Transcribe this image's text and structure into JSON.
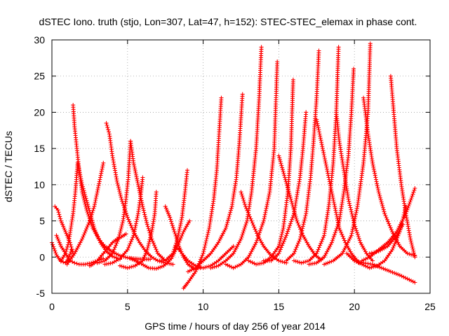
{
  "chart_data": {
    "type": "scatter",
    "title": "dSTEC Iono. truth (stjo, Lon=307, Lat=47, h=152): STEC-STEC_elemax in phase cont.",
    "xlabel": "GPS time / hours of day 256 of year 2014",
    "ylabel": "dSTEC  / TECUs",
    "xlim": [
      0,
      25
    ],
    "ylim": [
      -5,
      30
    ],
    "xticks": [
      "0",
      "5",
      "10",
      "15",
      "20",
      "25"
    ],
    "yticks": [
      "-5",
      "0",
      "5",
      "10",
      "15",
      "20",
      "25",
      "30"
    ],
    "grid": true,
    "legend": "none",
    "marker": "plus",
    "color": "#ff0000",
    "series": [
      {
        "x": [
          0.0,
          0.3,
          0.6,
          0.9,
          1.1,
          1.3
        ],
        "y": [
          2,
          0.3,
          -0.6,
          -0.8,
          -0.2,
          1.0
        ]
      },
      {
        "x": [
          0.2,
          0.4,
          0.6,
          0.8,
          1.0,
          1.2,
          1.4
        ],
        "y": [
          7,
          6.5,
          5,
          4,
          3,
          2,
          0.5
        ]
      },
      {
        "x": [
          0.3,
          0.6,
          0.9,
          1.2,
          1.5,
          1.8,
          2.2,
          2.6,
          3.0,
          3.4
        ],
        "y": [
          3,
          1.5,
          0.5,
          -0.5,
          -0.8,
          -1.0,
          -1.0,
          -0.8,
          -0.5,
          -0.2
        ]
      },
      {
        "x": [
          0.6,
          0.9,
          1.1,
          1.25,
          1.4,
          1.55,
          1.7,
          2.0,
          2.4,
          2.8,
          3.2,
          3.6,
          4.0,
          4.5
        ],
        "y": [
          -0.5,
          0.5,
          2,
          4,
          6,
          9,
          13,
          10,
          7,
          4,
          2,
          0.8,
          0.1,
          -0.3
        ]
      },
      {
        "x": [
          1.4,
          1.5,
          1.65,
          1.8,
          2.0,
          2.3,
          2.7,
          3.1,
          3.5,
          4.0,
          4.5,
          5.0,
          5.5,
          6.0,
          6.5
        ],
        "y": [
          21,
          18,
          15,
          12,
          9,
          6.5,
          4,
          2.5,
          1.5,
          0.7,
          0.2,
          -0.1,
          -0.2,
          -0.3,
          -0.3
        ]
      },
      {
        "x": [
          1.0,
          1.5,
          2.0,
          2.5,
          2.8,
          3.0,
          3.2,
          3.4
        ],
        "y": [
          -1.0,
          0.5,
          2.5,
          5,
          7,
          9,
          11,
          13
        ]
      },
      {
        "x": [
          2.5,
          2.7,
          3.0,
          3.4,
          3.8,
          4.0,
          4.3,
          4.6,
          4.9
        ],
        "y": [
          -1.2,
          -1.0,
          -0.5,
          0.5,
          1.5,
          2.0,
          2.5,
          2.8,
          3.2
        ]
      },
      {
        "x": [
          3.6,
          3.8,
          4.0,
          4.3,
          4.6,
          5.0,
          5.4,
          5.8,
          6.2,
          6.6,
          7.0,
          7.5,
          8.0
        ],
        "y": [
          18.5,
          17,
          14,
          10.5,
          8,
          5.5,
          3.5,
          2,
          0.8,
          0,
          -0.5,
          -0.8,
          -1.0
        ]
      },
      {
        "x": [
          3.0,
          3.5,
          4.0,
          4.4,
          4.7,
          4.9,
          5.05,
          5.2
        ],
        "y": [
          -0.8,
          -0.5,
          0.5,
          2.5,
          5,
          8,
          11,
          16
        ]
      },
      {
        "x": [
          5.2,
          5.4,
          5.7,
          6.0,
          6.3,
          6.6,
          7.0,
          7.5
        ],
        "y": [
          16,
          13,
          10,
          7,
          4.5,
          2.5,
          0.5,
          -0.5
        ]
      },
      {
        "x": [
          3.5,
          4.0,
          4.5,
          5.0,
          5.4,
          5.7,
          5.9,
          6.0
        ],
        "y": [
          -1.0,
          -0.8,
          -0.2,
          1,
          3,
          6,
          9,
          11
        ]
      },
      {
        "x": [
          4.5,
          5.0,
          5.5,
          6.0,
          6.3,
          6.6,
          6.8,
          6.9
        ],
        "y": [
          -1.2,
          -1.5,
          -1.2,
          -0.5,
          1,
          3.5,
          6,
          9
        ]
      },
      {
        "x": [
          5.2,
          5.8,
          6.4,
          6.9,
          7.4,
          7.9,
          8.3,
          8.7,
          9.1
        ],
        "y": [
          -0.2,
          -0.8,
          -1.5,
          -1.6,
          -1.2,
          -0.2,
          1.5,
          3.5,
          5
        ]
      },
      {
        "x": [
          7.5,
          7.8,
          8.1,
          8.4,
          8.7,
          9.0,
          9.4,
          9.8
        ],
        "y": [
          7,
          5.5,
          3.5,
          1.5,
          0,
          -1.0,
          -1.6,
          -1.5
        ]
      },
      {
        "x": [
          7.0,
          7.5,
          8.0,
          8.3,
          8.6,
          8.8,
          8.95
        ],
        "y": [
          -0.5,
          -0.5,
          0.5,
          2.5,
          5.5,
          9,
          12
        ]
      },
      {
        "x": [
          8.7,
          9.0,
          9.5,
          10.0,
          10.4,
          10.7,
          10.9,
          11.05,
          11.2
        ],
        "y": [
          -4.3,
          -3.5,
          -2,
          0.5,
          4,
          8,
          12,
          17,
          22
        ]
      },
      {
        "x": [
          8.2,
          8.6,
          9.0,
          9.5,
          10.0,
          10.5,
          11.0,
          11.5,
          12.0
        ],
        "y": [
          1.5,
          0.5,
          -0.5,
          -1.2,
          -1.5,
          -1.2,
          -0.5,
          0.5,
          1.5
        ]
      },
      {
        "x": [
          9.0,
          9.5,
          10.0,
          10.5,
          11.0,
          11.5,
          11.9,
          12.2,
          12.4,
          12.6
        ],
        "y": [
          -2.0,
          -1.5,
          -0.5,
          0.5,
          2,
          4,
          7,
          11,
          16,
          22.5
        ]
      },
      {
        "x": [
          10.5,
          11.0,
          11.5,
          12.0,
          12.5,
          12.9,
          13.2,
          13.5,
          13.7,
          13.85
        ],
        "y": [
          -1.5,
          -1.2,
          -0.5,
          0.5,
          2.5,
          5,
          9,
          15,
          22,
          29
        ]
      },
      {
        "x": [
          11.5,
          12.0,
          12.5,
          13.0,
          13.5,
          14.0,
          14.4,
          14.7,
          14.9
        ],
        "y": [
          -1.0,
          -1.5,
          -1.0,
          0,
          2,
          5,
          9,
          15,
          27
        ]
      },
      {
        "x": [
          12.5,
          12.8,
          13.2,
          13.6,
          14.0,
          14.5,
          15.0,
          15.5
        ],
        "y": [
          9,
          7,
          5,
          3,
          1.5,
          0.2,
          -0.5,
          -0.8
        ]
      },
      {
        "x": [
          13.0,
          13.5,
          14.0,
          14.5,
          15.0,
          15.3,
          15.6,
          15.8,
          15.95
        ],
        "y": [
          -0.5,
          -1.0,
          -0.8,
          0,
          1.5,
          4,
          9,
          15,
          24.5
        ]
      },
      {
        "x": [
          14.0,
          14.5,
          15.0,
          15.5,
          16.0,
          16.4,
          16.6,
          16.8
        ],
        "y": [
          -0.5,
          -0.5,
          0.5,
          3,
          6,
          11,
          15,
          20
        ]
      },
      {
        "x": [
          15.0,
          15.4,
          15.8,
          16.2,
          16.6,
          17.0,
          17.4,
          17.8
        ],
        "y": [
          14,
          11,
          8,
          5,
          3,
          1.5,
          0.3,
          -0.4
        ]
      },
      {
        "x": [
          15.5,
          16.0,
          16.4,
          16.8,
          17.1,
          17.3,
          17.5,
          17.65
        ],
        "y": [
          -0.5,
          0.5,
          2.5,
          6,
          11,
          16,
          22,
          28.5
        ]
      },
      {
        "x": [
          16.0,
          16.5,
          17.0,
          17.5,
          18.0,
          18.3,
          18.6,
          18.8,
          18.95
        ],
        "y": [
          -0.5,
          -0.8,
          -0.5,
          0.5,
          3,
          7,
          13,
          20,
          29
        ]
      },
      {
        "x": [
          17.5,
          17.9,
          18.3,
          18.7,
          19.0,
          19.4,
          19.8,
          20.3
        ],
        "y": [
          19,
          15,
          11,
          7,
          4,
          2,
          0.5,
          -0.8
        ]
      },
      {
        "x": [
          17.0,
          17.5,
          18.0,
          18.5,
          19.0,
          19.3,
          19.6,
          19.8,
          19.95
        ],
        "y": [
          -1.0,
          -0.8,
          0,
          2,
          5,
          9,
          14,
          20,
          26
        ]
      },
      {
        "x": [
          18.8,
          19.0,
          19.3,
          19.6,
          20.0,
          20.4,
          20.8,
          21.2
        ],
        "y": [
          20,
          16,
          12,
          8,
          4.5,
          2,
          0.5,
          -0.5
        ]
      },
      {
        "x": [
          18.0,
          18.6,
          19.2,
          19.8,
          20.2,
          20.6,
          20.9,
          21.05
        ],
        "y": [
          -1.0,
          -0.5,
          0.5,
          3,
          7,
          13,
          20,
          29.5
        ]
      },
      {
        "x": [
          20.6,
          20.9,
          21.2,
          21.6,
          22.0,
          22.5,
          23.0,
          23.5,
          24.0
        ],
        "y": [
          22,
          17,
          13,
          9,
          6,
          3.5,
          1.5,
          0.5,
          0.2
        ]
      },
      {
        "x": [
          19.5,
          20.0,
          20.5,
          21.0,
          21.5,
          22.0,
          22.5,
          23.0,
          23.4
        ],
        "y": [
          0.5,
          -0.5,
          -1.0,
          -1.5,
          -1.2,
          -0.5,
          1,
          3.5,
          7
        ]
      },
      {
        "x": [
          20.5,
          21.0,
          21.6,
          22.2,
          22.8,
          23.4,
          24.0
        ],
        "y": [
          -0.5,
          0,
          1,
          2,
          3.5,
          6,
          9.5
        ]
      },
      {
        "x": [
          22.4,
          22.6,
          22.8,
          23.1,
          23.4,
          23.7,
          24.0
        ],
        "y": [
          25,
          20,
          15,
          10,
          6,
          2.5,
          0
        ]
      },
      {
        "x": [
          20.0,
          20.6,
          21.2,
          21.8,
          22.4,
          23.0,
          23.5,
          24.0
        ],
        "y": [
          -0.5,
          -0.8,
          -1.0,
          -1.5,
          -2.0,
          -2.5,
          -3.0,
          -3.5
        ]
      },
      {
        "x": [
          21.0,
          21.6,
          22.2,
          22.8,
          23.2
        ],
        "y": [
          0.5,
          0.8,
          1.5,
          3,
          4.5
        ]
      }
    ]
  }
}
